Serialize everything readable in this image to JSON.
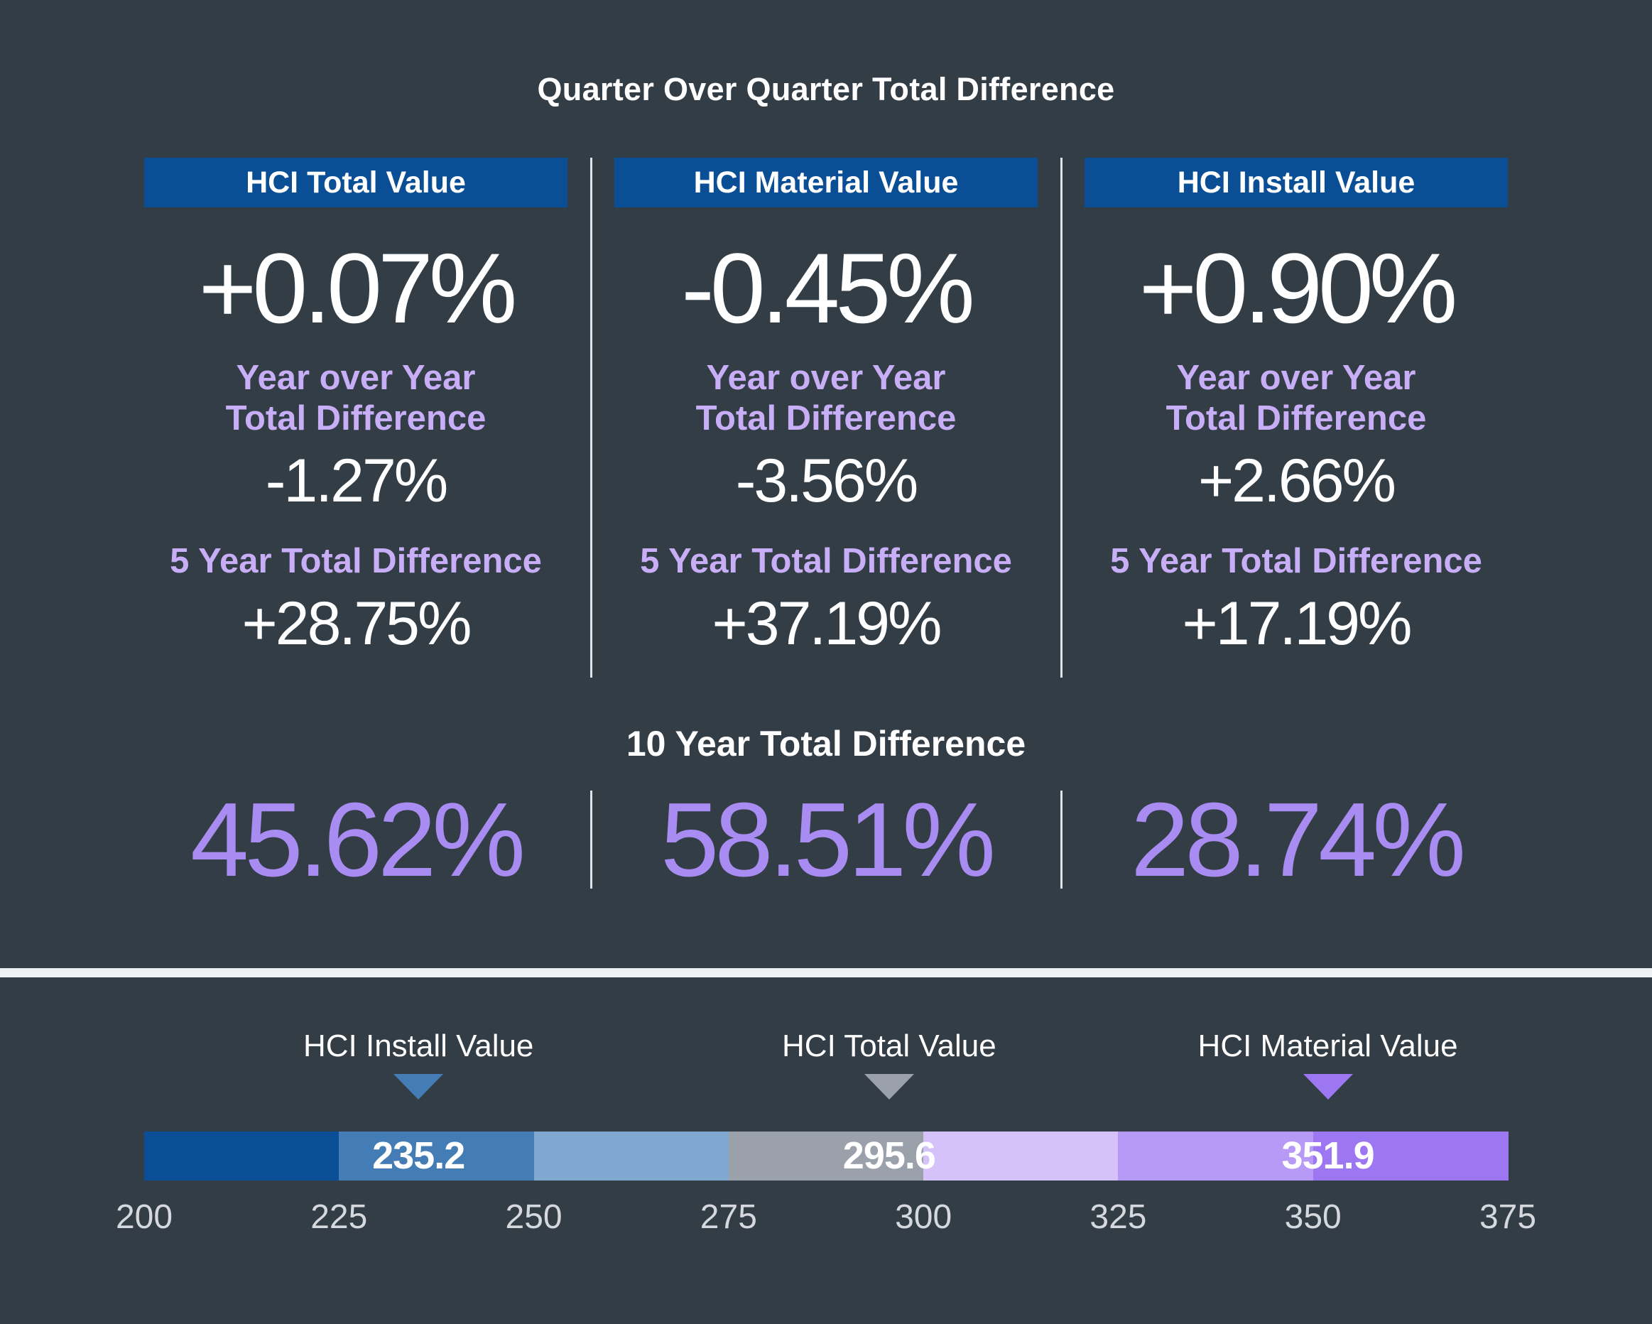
{
  "title": "Quarter Over Quarter Total Difference",
  "columns": [
    {
      "header": "HCI Total Value",
      "qoq": "+0.07%",
      "yoy_label_line1": "Year over Year",
      "yoy_label_line2": "Total Difference",
      "yoy": "-1.27%",
      "five_year_label": "5 Year Total Difference",
      "five_year": "+28.75%",
      "ten_year": "45.62%"
    },
    {
      "header": "HCI Material Value",
      "qoq": "-0.45%",
      "yoy_label_line1": "Year over Year",
      "yoy_label_line2": "Total Difference",
      "yoy": "-3.56%",
      "five_year_label": "5 Year Total Difference",
      "five_year": "+37.19%",
      "ten_year": "58.51%"
    },
    {
      "header": "HCI Install Value",
      "qoq": "+0.90%",
      "yoy_label_line1": "Year over Year",
      "yoy_label_line2": "Total Difference",
      "yoy": "+2.66%",
      "five_year_label": "5 Year Total Difference",
      "five_year": "+17.19%",
      "ten_year": "28.74%"
    }
  ],
  "ten_year_title": "10 Year Total Difference",
  "colors": {
    "background": "#333d46",
    "header_fill": "#0a4f96",
    "label_purple": "#c8aef7",
    "ten_year_purple": "#a98cf2",
    "divider": "#dfe3e8"
  },
  "chart_data": {
    "type": "bar",
    "orientation": "horizontal-scale",
    "x_ticks": [
      200,
      225,
      250,
      275,
      300,
      325,
      350,
      375
    ],
    "xlim": [
      200,
      375
    ],
    "segments": [
      {
        "from": 200,
        "to": 225,
        "color": "#0a4f96"
      },
      {
        "from": 225,
        "to": 250,
        "color": "#447db6"
      },
      {
        "from": 250,
        "to": 275,
        "color": "#7fa7cf"
      },
      {
        "from": 275,
        "to": 300,
        "color": "#9aa1ab"
      },
      {
        "from": 300,
        "to": 325,
        "color": "#d5c2fb"
      },
      {
        "from": 325,
        "to": 350,
        "color": "#b69af6"
      },
      {
        "from": 350,
        "to": 375,
        "color": "#9d77f2"
      }
    ],
    "markers": [
      {
        "name": "HCI Install Value",
        "value": 235.2,
        "label": "235.2",
        "color": "#447db6"
      },
      {
        "name": "HCI Total Value",
        "value": 295.6,
        "label": "295.6",
        "color": "#9aa1ab"
      },
      {
        "name": "HCI Material Value",
        "value": 351.9,
        "label": "351.9",
        "color": "#9d77f2"
      }
    ]
  }
}
